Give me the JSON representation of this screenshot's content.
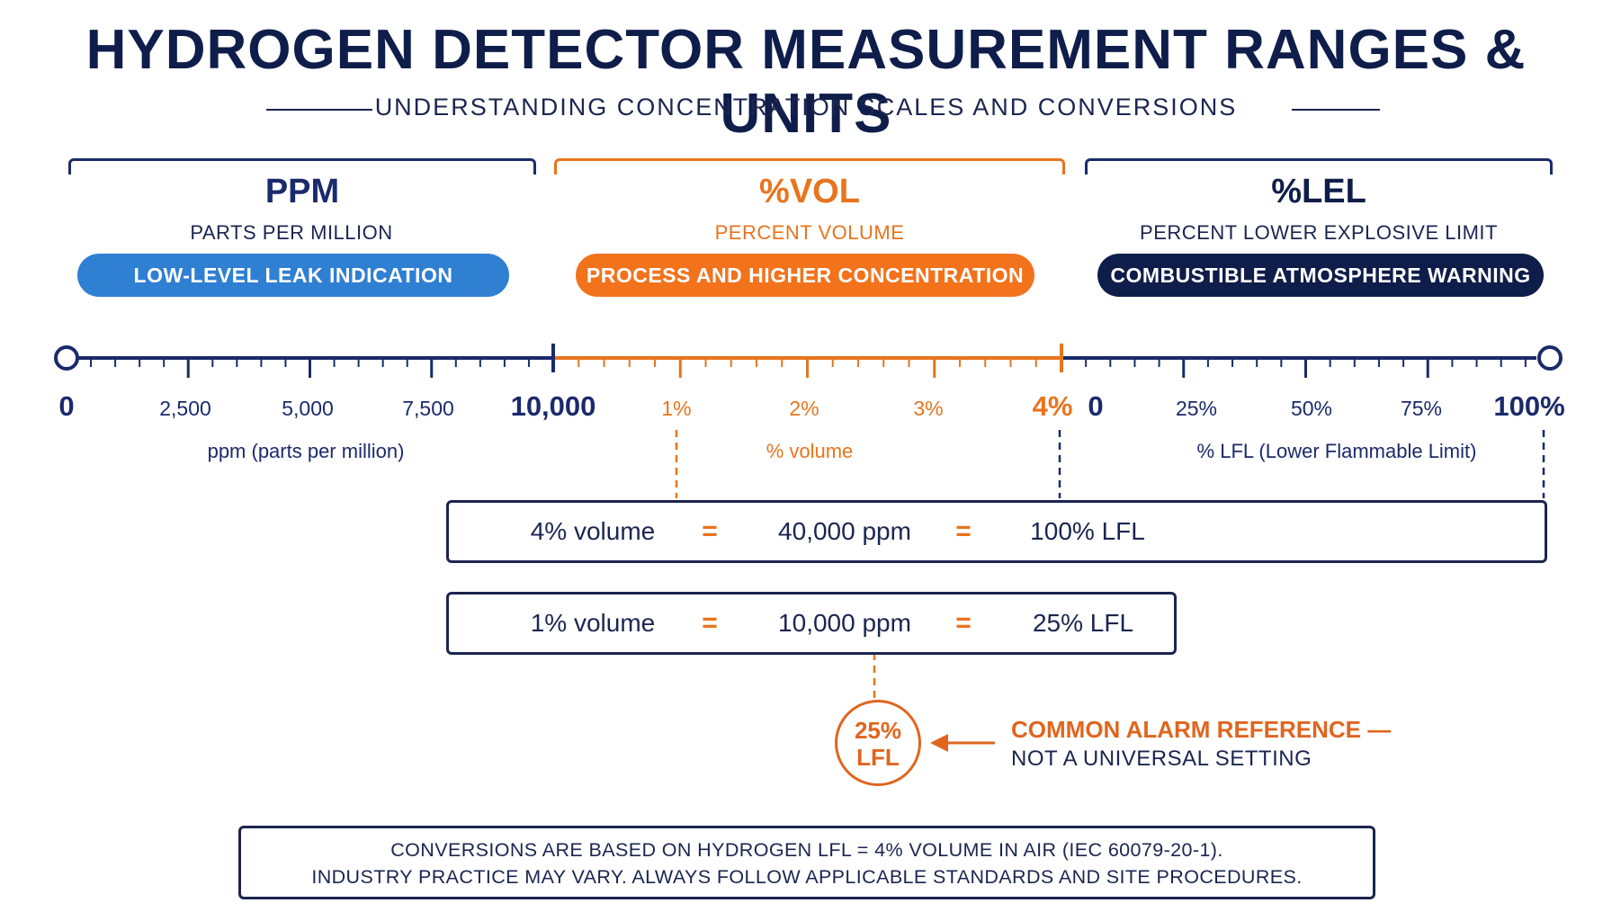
{
  "title": "HYDROGEN DETECTOR MEASUREMENT RANGES & UNITS",
  "subtitle": "UNDERSTANDING CONCENTRATION SCALES AND CONVERSIONS",
  "colors": {
    "navy": "#1b2a6b",
    "dark": "#0f1d4a",
    "orange": "#e8741d",
    "blue": "#2f7fd3"
  },
  "categories": [
    {
      "title": "PPM",
      "subtitle": "PARTS PER MILLION",
      "pill": "LOW-LEVEL LEAK INDICATION"
    },
    {
      "title": "%VOL",
      "subtitle": "PERCENT VOLUME",
      "pill": "PROCESS AND HIGHER CONCENTRATION"
    },
    {
      "title": "%LEL",
      "subtitle": "PERCENT LOWER EXPLOSIVE LIMIT",
      "pill": "COMBUSTIBLE ATMOSPHERE WARNING"
    }
  ],
  "scales": {
    "ppm": {
      "ticks": [
        "0",
        "2,500",
        "5,000",
        "7,500",
        "10,000"
      ],
      "label": "ppm (parts per million)"
    },
    "vol": {
      "ticks": [
        "1%",
        "2%",
        "3%",
        "4%"
      ],
      "label": "% volume"
    },
    "lfl": {
      "ticks": [
        "0",
        "25%",
        "50%",
        "75%",
        "100%"
      ],
      "label": "% LFL (Lower Flammable Limit)"
    }
  },
  "equations": [
    {
      "a": "4% volume",
      "eq": "=",
      "b": "40,000 ppm",
      "c": "100% LFL"
    },
    {
      "a": "1% volume",
      "eq": "=",
      "b": "10,000 ppm",
      "c": "25% LFL"
    }
  ],
  "alarm": {
    "circle_line1": "25%",
    "circle_line2": "LFL",
    "heading": "COMMON ALARM REFERENCE —",
    "subtext": "NOT A UNIVERSAL SETTING"
  },
  "note": {
    "line1": "CONVERSIONS ARE BASED ON HYDROGEN LFL = 4% VOLUME IN AIR (IEC 60079-20-1).",
    "line2": "INDUSTRY PRACTICE MAY VARY. ALWAYS FOLLOW APPLICABLE STANDARDS AND SITE PROCEDURES."
  }
}
